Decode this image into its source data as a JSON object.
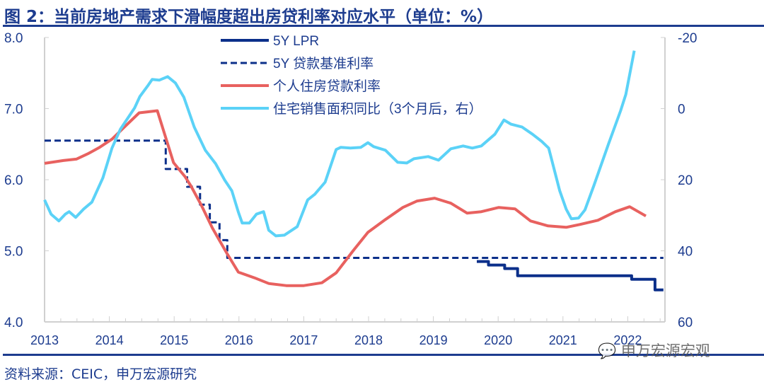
{
  "title": "图 2：当前房地产需求下滑幅度超出房贷利率对应水平（单位：%）",
  "source": "资料来源：CEIC，申万宏源研究",
  "watermark": "申万宏源宏观",
  "chart_data": {
    "type": "line",
    "title": "图 2：当前房地产需求下滑幅度超出房贷利率对应水平（单位：%）",
    "x_ticks": [
      "2013",
      "2014",
      "2015",
      "2016",
      "2017",
      "2018",
      "2019",
      "2020",
      "2021",
      "2022"
    ],
    "xlim": [
      2013,
      2022.6
    ],
    "y_left": {
      "ticks": [
        "4.0",
        "5.0",
        "6.0",
        "7.0",
        "8.0"
      ],
      "lim": [
        4.0,
        8.0
      ]
    },
    "y_right": {
      "ticks": [
        "-20",
        "0",
        "20",
        "40",
        "60"
      ],
      "lim": [
        -20,
        60
      ],
      "reversed": true
    },
    "grid": false,
    "legend": "top-center",
    "series": [
      {
        "name": "5Y LPR",
        "axis": "left",
        "style": "solid",
        "color": "#0b2f8a",
        "step": true,
        "x": [
          2019.67,
          2019.85,
          2020.1,
          2020.3,
          2022.06,
          2022.42,
          2022.55
        ],
        "y": [
          4.85,
          4.8,
          4.75,
          4.65,
          4.6,
          4.45,
          4.45
        ]
      },
      {
        "name": "5Y 贷款基准利率",
        "axis": "left",
        "style": "dashed",
        "color": "#0b2f8a",
        "step": true,
        "x": [
          2013.0,
          2014.87,
          2015.2,
          2015.4,
          2015.55,
          2015.7,
          2015.82,
          2022.55
        ],
        "y": [
          6.55,
          6.15,
          5.9,
          5.65,
          5.4,
          5.15,
          4.9,
          4.9
        ]
      },
      {
        "name": "个人住房贷款利率",
        "axis": "left",
        "style": "solid",
        "color": "#e8615f",
        "x": [
          2013.0,
          2013.29,
          2013.49,
          2013.68,
          2013.84,
          2014.04,
          2014.22,
          2014.46,
          2014.74,
          2014.99,
          2015.17,
          2015.26,
          2015.42,
          2015.59,
          2015.81,
          2015.99,
          2016.24,
          2016.46,
          2016.73,
          2017.0,
          2017.28,
          2017.5,
          2017.77,
          2017.99,
          2018.26,
          2018.53,
          2018.75,
          2019.02,
          2019.27,
          2019.52,
          2019.74,
          2020.01,
          2020.26,
          2020.5,
          2020.77,
          2021.05,
          2021.26,
          2021.54,
          2021.81,
          2022.03,
          2022.28
        ],
        "y": [
          6.23,
          6.27,
          6.29,
          6.37,
          6.45,
          6.57,
          6.73,
          6.94,
          6.97,
          6.24,
          6.04,
          5.91,
          5.64,
          5.32,
          4.97,
          4.7,
          4.62,
          4.54,
          4.51,
          4.51,
          4.55,
          4.69,
          5.01,
          5.26,
          5.44,
          5.61,
          5.7,
          5.74,
          5.67,
          5.53,
          5.55,
          5.61,
          5.59,
          5.42,
          5.35,
          5.33,
          5.37,
          5.43,
          5.55,
          5.62,
          5.49
        ]
      },
      {
        "name": "住宅销售面积同比（3个月后，右）",
        "axis": "right",
        "style": "solid",
        "color": "#5bd2f7",
        "x": [
          2013.0,
          2013.1,
          2013.22,
          2013.32,
          2013.38,
          2013.48,
          2013.6,
          2013.73,
          2013.9,
          2014.04,
          2014.17,
          2014.39,
          2014.47,
          2014.6,
          2014.66,
          2014.77,
          2014.9,
          2015.02,
          2015.15,
          2015.31,
          2015.48,
          2015.64,
          2015.78,
          2015.89,
          2015.99,
          2016.05,
          2016.16,
          2016.27,
          2016.38,
          2016.46,
          2016.57,
          2016.7,
          2016.9,
          2017.06,
          2017.17,
          2017.33,
          2017.5,
          2017.57,
          2017.72,
          2017.88,
          2017.99,
          2018.08,
          2018.26,
          2018.45,
          2018.59,
          2018.7,
          2018.92,
          2019.08,
          2019.27,
          2019.46,
          2019.6,
          2019.74,
          2019.95,
          2020.09,
          2020.2,
          2020.37,
          2020.53,
          2020.67,
          2020.78,
          2020.95,
          2021.05,
          2021.13,
          2021.24,
          2021.34,
          2021.48,
          2021.7,
          2021.89,
          2021.97,
          2022.1
        ],
        "y": [
          25.7,
          29.7,
          31.6,
          29.7,
          29.0,
          30.6,
          28.3,
          26.3,
          19.5,
          11.1,
          5.8,
          -0.2,
          -3.4,
          -6.6,
          -8.2,
          -8.0,
          -9.0,
          -7.2,
          -3.2,
          5.2,
          11.7,
          15.5,
          20.1,
          23.1,
          29.1,
          32.2,
          32.2,
          29.7,
          29.0,
          34.2,
          35.8,
          35.6,
          33.2,
          25.7,
          24.1,
          20.7,
          11.5,
          10.9,
          11.1,
          10.9,
          9.6,
          10.7,
          11.7,
          15.1,
          15.3,
          14.1,
          13.5,
          14.5,
          11.3,
          10.5,
          11.1,
          10.5,
          7.2,
          3.2,
          4.4,
          5.2,
          7.2,
          9.2,
          11.1,
          23.1,
          28.3,
          31.0,
          30.8,
          28.5,
          21.5,
          10.1,
          0.6,
          -4.0,
          -16.3
        ]
      }
    ]
  }
}
